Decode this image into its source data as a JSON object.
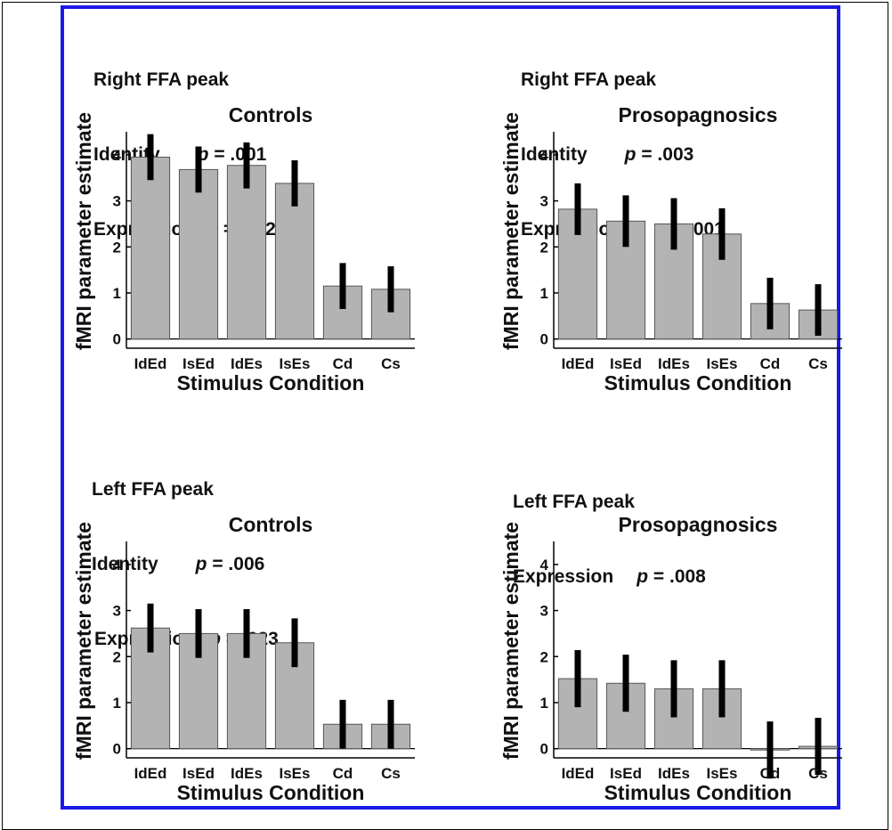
{
  "chart_data": [
    {
      "type": "bar",
      "title": "Controls",
      "stats_header": "Right FFA peak",
      "stats": [
        {
          "label": "Identity",
          "p_prefix": "p",
          "p_value": " = .001"
        },
        {
          "label": "Expression",
          "p_prefix": "p",
          "p_value": " = .002"
        }
      ],
      "xlabel": "Stimulus Condition",
      "ylabel": "fMRI parameter estimate",
      "categories": [
        "IdEd",
        "IsEd",
        "IdEs",
        "IsEs",
        "Cd",
        "Cs"
      ],
      "values": [
        3.95,
        3.68,
        3.77,
        3.38,
        1.15,
        1.08
      ],
      "errors": [
        0.5,
        0.5,
        0.5,
        0.5,
        0.5,
        0.5
      ],
      "ylim": [
        -0.2,
        4.5
      ],
      "yticks": [
        "0",
        "1",
        "2",
        "3",
        "4"
      ]
    },
    {
      "type": "bar",
      "title": "Prosopagnosics",
      "stats_header": "Right FFA peak",
      "stats": [
        {
          "label": "Identity",
          "p_prefix": "p",
          "p_value": " = .003"
        },
        {
          "label": "Expression",
          "p_prefix": "p",
          "p_value": " = .001"
        }
      ],
      "xlabel": "Stimulus Condition",
      "ylabel": "fMRI parameter estimate",
      "categories": [
        "IdEd",
        "IsEd",
        "IdEs",
        "IsEs",
        "Cd",
        "Cs"
      ],
      "values": [
        2.82,
        2.56,
        2.5,
        2.28,
        0.77,
        0.63
      ],
      "errors": [
        0.56,
        0.56,
        0.56,
        0.56,
        0.56,
        0.56
      ],
      "ylim": [
        -0.2,
        4.5
      ],
      "yticks": [
        "0",
        "1",
        "2",
        "3",
        "4"
      ]
    },
    {
      "type": "bar",
      "title": "Controls",
      "stats_header": "Left FFA peak",
      "stats": [
        {
          "label": "Identity",
          "p_prefix": "p",
          "p_value": " = .006"
        },
        {
          "label": "Expression",
          "p_prefix": "p",
          "p_value": " = .023"
        }
      ],
      "xlabel": "Stimulus Condition",
      "ylabel": "fMRI parameter estimate",
      "categories": [
        "IdEd",
        "IsEd",
        "IdEs",
        "IsEs",
        "Cd",
        "Cs"
      ],
      "values": [
        2.62,
        2.5,
        2.5,
        2.3,
        0.53,
        0.53
      ],
      "errors": [
        0.53,
        0.53,
        0.53,
        0.53,
        0.53,
        0.53
      ],
      "ylim": [
        -0.2,
        4.5
      ],
      "yticks": [
        "0",
        "1",
        "2",
        "3",
        "4"
      ]
    },
    {
      "type": "bar",
      "title": "Prosopagnosics",
      "stats_header": "Left FFA peak",
      "stats": [
        {
          "label": "Expression",
          "p_prefix": "p",
          "p_value": " = .008"
        }
      ],
      "xlabel": "Stimulus Condition",
      "ylabel": "fMRI parameter estimate",
      "categories": [
        "IdEd",
        "IsEd",
        "IdEs",
        "IsEs",
        "Cd",
        "Cs"
      ],
      "values": [
        1.52,
        1.42,
        1.3,
        1.3,
        -0.03,
        0.05
      ],
      "errors": [
        0.62,
        0.62,
        0.62,
        0.62,
        0.62,
        0.62
      ],
      "ylim": [
        -0.2,
        4.5
      ],
      "yticks": [
        "0",
        "1",
        "2",
        "3",
        "4"
      ]
    }
  ],
  "colors": {
    "bar_fill": "#b3b3b3",
    "bar_stroke": "#555555",
    "error_bar": "#000000",
    "frame": "#1a1ae6"
  }
}
